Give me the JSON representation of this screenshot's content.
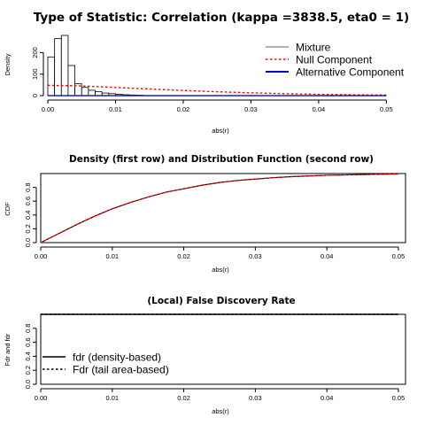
{
  "colors": {
    "mixture": "#808080",
    "null": "#ff0000",
    "alternative": "#0000cd",
    "axis": "#000000",
    "cdf_line": "#000000"
  },
  "chart_data": [
    {
      "type": "bar",
      "title": "Type of Statistic: Correlation (kappa =3838.5, eta0 = 1)",
      "xlabel": "abs(r)",
      "ylabel": "Density",
      "xlim": [
        0,
        0.051
      ],
      "ylim": [
        0,
        280
      ],
      "x_ticks": [
        "0.00",
        "0.01",
        "0.02",
        "0.03",
        "0.04",
        "0.05"
      ],
      "x_tick_values": [
        0,
        0.01,
        0.02,
        0.03,
        0.04,
        0.05
      ],
      "y_ticks": [
        "0",
        "100",
        "200"
      ],
      "y_tick_values": [
        0,
        100,
        200
      ],
      "histogram": {
        "bin_width": 0.001,
        "bin_starts": [
          0.0,
          0.001,
          0.002,
          0.003,
          0.004,
          0.005,
          0.006,
          0.007,
          0.008,
          0.009,
          0.01,
          0.011,
          0.012,
          0.013
        ],
        "heights": [
          180,
          265,
          280,
          140,
          55,
          38,
          25,
          18,
          12,
          9,
          6,
          4,
          3,
          2
        ]
      },
      "series": [
        {
          "name": "Mixture",
          "style": "solid",
          "x": [
            0,
            0.005,
            0.01,
            0.015,
            0.02,
            0.025,
            0.03,
            0.035,
            0.04,
            0.045,
            0.05
          ],
          "y": [
            0,
            0,
            0,
            0,
            0,
            0,
            0,
            0,
            0,
            0,
            0
          ]
        },
        {
          "name": "Null Component",
          "style": "dotted",
          "x": [
            0,
            0.005,
            0.01,
            0.015,
            0.02,
            0.025,
            0.03,
            0.035,
            0.04,
            0.045,
            0.05
          ],
          "y": [
            48,
            45,
            38,
            31,
            24,
            18,
            13,
            9,
            6,
            4,
            2.5
          ]
        },
        {
          "name": "Alternative Component",
          "style": "solid",
          "x": [
            0,
            0.05
          ],
          "y": [
            0,
            0
          ]
        }
      ],
      "legend": {
        "placement": "top-right",
        "items": [
          "Mixture",
          "Null Component",
          "Alternative Component"
        ]
      }
    },
    {
      "type": "line",
      "title": "Density (first row) and Distribution Function (second row)",
      "xlabel": "abs(r)",
      "ylabel": "CDF",
      "xlim": [
        0,
        0.051
      ],
      "ylim": [
        0,
        1
      ],
      "x_ticks": [
        "0.00",
        "0.01",
        "0.02",
        "0.03",
        "0.04",
        "0.05"
      ],
      "x_tick_values": [
        0,
        0.01,
        0.02,
        0.03,
        0.04,
        0.05
      ],
      "y_ticks": [
        "0.0",
        "0.2",
        "0.4",
        "0.6",
        "0.8"
      ],
      "y_tick_values": [
        0,
        0.2,
        0.4,
        0.6,
        0.8
      ],
      "series": [
        {
          "name": "cdf-mixture",
          "style": "solid",
          "x": [
            0,
            0.0025,
            0.005,
            0.0075,
            0.01,
            0.0125,
            0.015,
            0.0175,
            0.02,
            0.0225,
            0.025,
            0.0275,
            0.03,
            0.0325,
            0.035,
            0.0375,
            0.04,
            0.0425,
            0.045,
            0.0475,
            0.05
          ],
          "y": [
            0,
            0.13,
            0.26,
            0.38,
            0.49,
            0.58,
            0.66,
            0.73,
            0.78,
            0.83,
            0.87,
            0.9,
            0.92,
            0.94,
            0.955,
            0.965,
            0.975,
            0.98,
            0.985,
            0.99,
            0.993
          ]
        },
        {
          "name": "cdf-null",
          "style": "dashed",
          "x": [
            0,
            0.0025,
            0.005,
            0.0075,
            0.01,
            0.0125,
            0.015,
            0.0175,
            0.02,
            0.0225,
            0.025,
            0.0275,
            0.03,
            0.0325,
            0.035,
            0.0375,
            0.04,
            0.0425,
            0.045,
            0.0475,
            0.05
          ],
          "y": [
            0,
            0.13,
            0.26,
            0.38,
            0.49,
            0.58,
            0.66,
            0.73,
            0.78,
            0.83,
            0.87,
            0.9,
            0.92,
            0.94,
            0.955,
            0.965,
            0.975,
            0.98,
            0.985,
            0.99,
            0.993
          ]
        }
      ]
    },
    {
      "type": "line",
      "title": "(Local) False Discovery Rate",
      "xlabel": "abs(r)",
      "ylabel": "Fdr and fdr",
      "xlim": [
        0,
        0.051
      ],
      "ylim": [
        0,
        1
      ],
      "x_ticks": [
        "0.00",
        "0.01",
        "0.02",
        "0.03",
        "0.04",
        "0.05"
      ],
      "x_tick_values": [
        0,
        0.01,
        0.02,
        0.03,
        0.04,
        0.05
      ],
      "y_ticks": [
        "0.0",
        "0.2",
        "0.4",
        "0.6",
        "0.8"
      ],
      "y_tick_values": [
        0,
        0.2,
        0.4,
        0.6,
        0.8
      ],
      "series": [
        {
          "name": "fdr (density-based)",
          "style": "solid",
          "x": [
            0,
            0.05
          ],
          "y": [
            1,
            1
          ]
        },
        {
          "name": "Fdr (tail area-based)",
          "style": "dotted",
          "x": [
            0,
            0.05
          ],
          "y": [
            1,
            1
          ]
        }
      ],
      "legend": {
        "placement": "bottom-left",
        "items": [
          "fdr (density-based)",
          "Fdr (tail area-based)"
        ]
      }
    }
  ]
}
